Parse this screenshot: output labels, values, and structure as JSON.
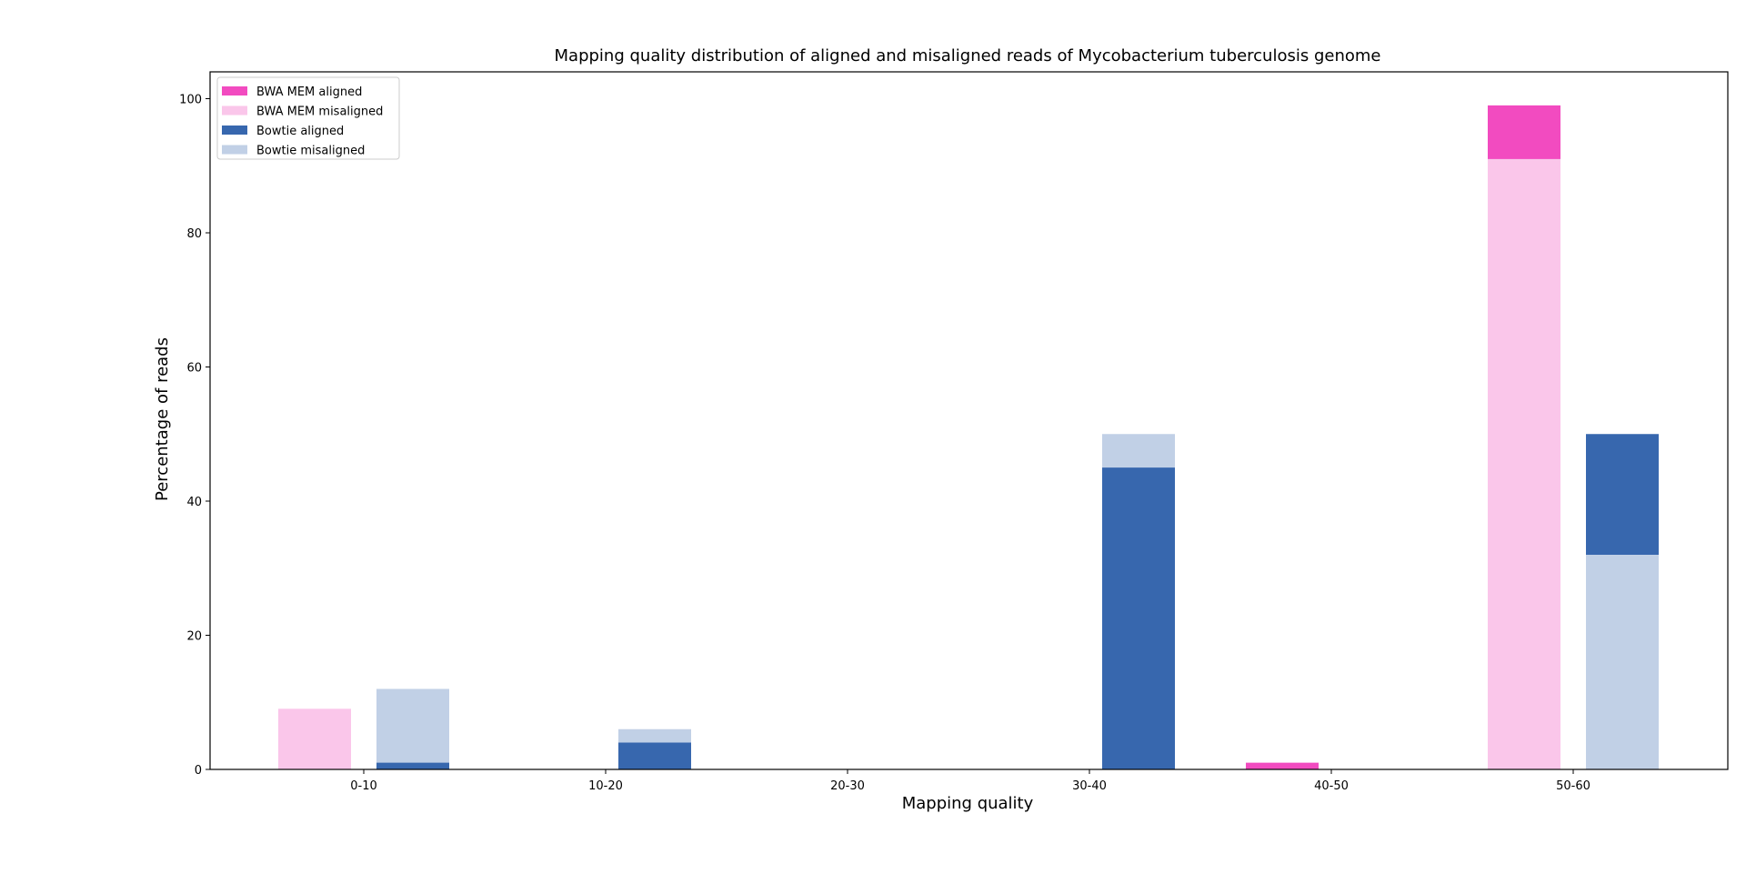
{
  "chart_data": {
    "type": "bar",
    "title": "Mapping quality distribution of aligned and misaligned reads of Mycobacterium tuberculosis genome",
    "xlabel": "Mapping quality",
    "ylabel": "Percentage of reads",
    "ylim": [
      0,
      104
    ],
    "yticks": [
      "0",
      "20",
      "40",
      "60",
      "80",
      "100"
    ],
    "categories": [
      "0-10",
      "10-20",
      "20-30",
      "30-40",
      "40-50",
      "50-60"
    ],
    "grid": false,
    "legend_position": "upper-left",
    "series": [
      {
        "name": "BWA MEM aligned",
        "color": "#f24bc0",
        "group": "BWA MEM",
        "values": [
          9,
          0,
          0,
          0,
          1,
          99
        ]
      },
      {
        "name": "BWA MEM misaligned",
        "color": "#fac6ea",
        "group": "BWA MEM",
        "values": [
          9,
          0,
          0,
          0,
          0,
          91
        ]
      },
      {
        "name": "Bowtie aligned",
        "color": "#3767ae",
        "group": "Bowtie",
        "values": [
          1,
          4,
          0,
          45,
          0,
          50
        ]
      },
      {
        "name": "Bowtie misaligned",
        "color": "#c1d0e6",
        "group": "Bowtie",
        "values": [
          12,
          6,
          0,
          50,
          0,
          32
        ]
      }
    ]
  }
}
